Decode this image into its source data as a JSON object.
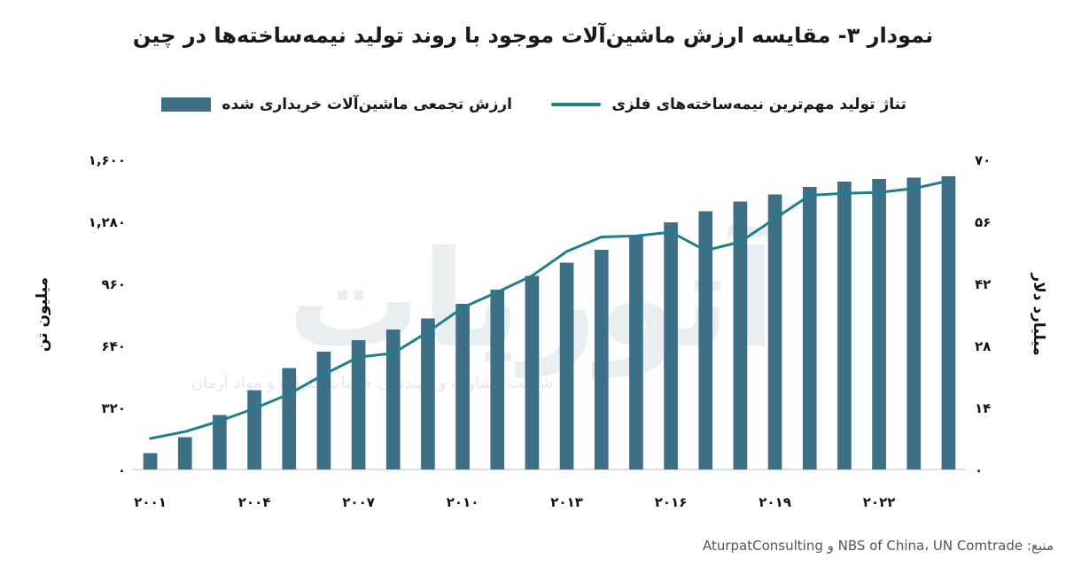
{
  "title": "نمودار ۳- مقایسه ارزش ماشین‌آلات موجود با روند تولید نیمه‌ساخته‌ها در چین",
  "legend": {
    "line_label": "تناژ تولید مهم‌ترین نیمه‌ساخته‌های فلزی",
    "bar_label": "ارزش تجمعی ماشین‌آلات خریداری شده"
  },
  "source": "منبع: NBS of China، UN Comtrade و AturpatConsulting",
  "chart_data": {
    "type": "bar",
    "x": [
      2001,
      2002,
      2003,
      2004,
      2005,
      2006,
      2007,
      2008,
      2009,
      2010,
      2011,
      2012,
      2013,
      2014,
      2015,
      2016,
      2017,
      2018,
      2019,
      2020,
      2021,
      2022,
      2023,
      2024
    ],
    "x_tick_labels": [
      "۲۰۰۱",
      "۲۰۰۴",
      "۲۰۰۷",
      "۲۰۱۰",
      "۲۰۱۳",
      "۲۰۱۶",
      "۲۰۱۹",
      "۲۰۲۲"
    ],
    "x_tick_years": [
      2001,
      2004,
      2007,
      2010,
      2013,
      2016,
      2019,
      2022
    ],
    "series": [
      {
        "name": "تناژ تولید مهم‌ترین نیمه‌ساخته‌های فلزی",
        "type": "line",
        "axis": "left",
        "values": [
          160,
          195,
          250,
          315,
          390,
          490,
          580,
          600,
          710,
          835,
          915,
          1000,
          1125,
          1200,
          1205,
          1225,
          1130,
          1175,
          1295,
          1415,
          1425,
          1430,
          1450,
          1490
        ]
      },
      {
        "name": "ارزش تجمعی ماشین‌آلات خریداری شده",
        "type": "bar",
        "axis": "right",
        "values": [
          3.7,
          7.3,
          12.3,
          17.9,
          22.9,
          26.6,
          29.2,
          31.6,
          34.1,
          37.4,
          40.6,
          43.7,
          46.7,
          49.6,
          52.7,
          55.8,
          58.3,
          60.5,
          62.1,
          63.8,
          65.0,
          65.6,
          65.9,
          66.2
        ],
        "color": "#3d6f86"
      }
    ],
    "ylabel_left": "میلیون تن",
    "ylim_left": [
      0,
      1600
    ],
    "yticks_left": [
      "۰",
      "۳۲۰",
      "۶۴۰",
      "۹۶۰",
      "۱,۲۸۰",
      "۱,۶۰۰"
    ],
    "ylabel_right": "میلیارد دلار",
    "ylim_right": [
      0,
      70
    ],
    "yticks_right": [
      "۰",
      "۱۴",
      "۲۸",
      "۴۲",
      "۵۶",
      "۷۰"
    ],
    "line_color": "#1f7f8e",
    "grid": false,
    "legend_position": "top"
  },
  "watermark": {
    "text": "آتورپات",
    "subtext": "شرکت مشاوره و مهندسی خدمات فلزات و مواد آرمان"
  }
}
